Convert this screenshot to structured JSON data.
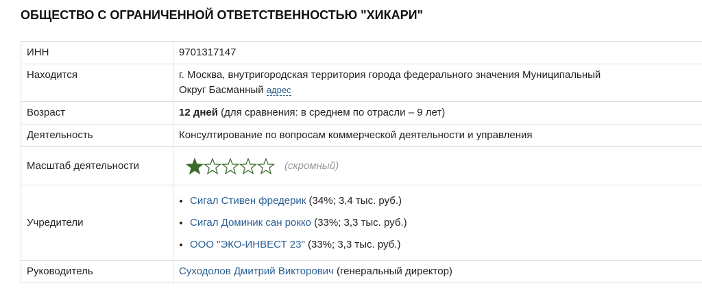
{
  "title": "ОБЩЕСТВО С ОГРАНИЧЕННОЙ ОТВЕТСТВЕННОСТЬЮ \"ХИКАРИ\"",
  "rows": {
    "inn": {
      "label": "ИНН",
      "value": "9701317147"
    },
    "location": {
      "label": "Находится",
      "value": "г. Москва, внутригородская территория города федерального значения Муниципальный Округ Басманный",
      "link": "адрес"
    },
    "age": {
      "label": "Возраст",
      "bold": "12 дней",
      "rest": " (для сравнения: в среднем по отрасли – 9 лет)"
    },
    "activity": {
      "label": "Деятельность",
      "value": "Консултирование по вопросам коммерческой деятельности и управления"
    },
    "scale": {
      "label": "Масштаб деятельности",
      "rating": 1,
      "max": 5,
      "note": "(скромный)",
      "star_color": "#3d6b2a"
    },
    "founders": {
      "label": "Учредители",
      "items": [
        {
          "name": "Сигал Стивен фредерик",
          "info": " (34%; 3,4 тыс. руб.)"
        },
        {
          "name": "Сигал Доминик сан рокко",
          "info": " (33%; 3,3 тыс. руб.)"
        },
        {
          "name": "ООО \"ЭКО-ИНВЕСТ 23\"",
          "info": " (33%; 3,3 тыс. руб.)"
        }
      ]
    },
    "head": {
      "label": "Руководитель",
      "name": "Суходолов Дмитрий Викторович",
      "role": " (генеральный директор)"
    }
  }
}
